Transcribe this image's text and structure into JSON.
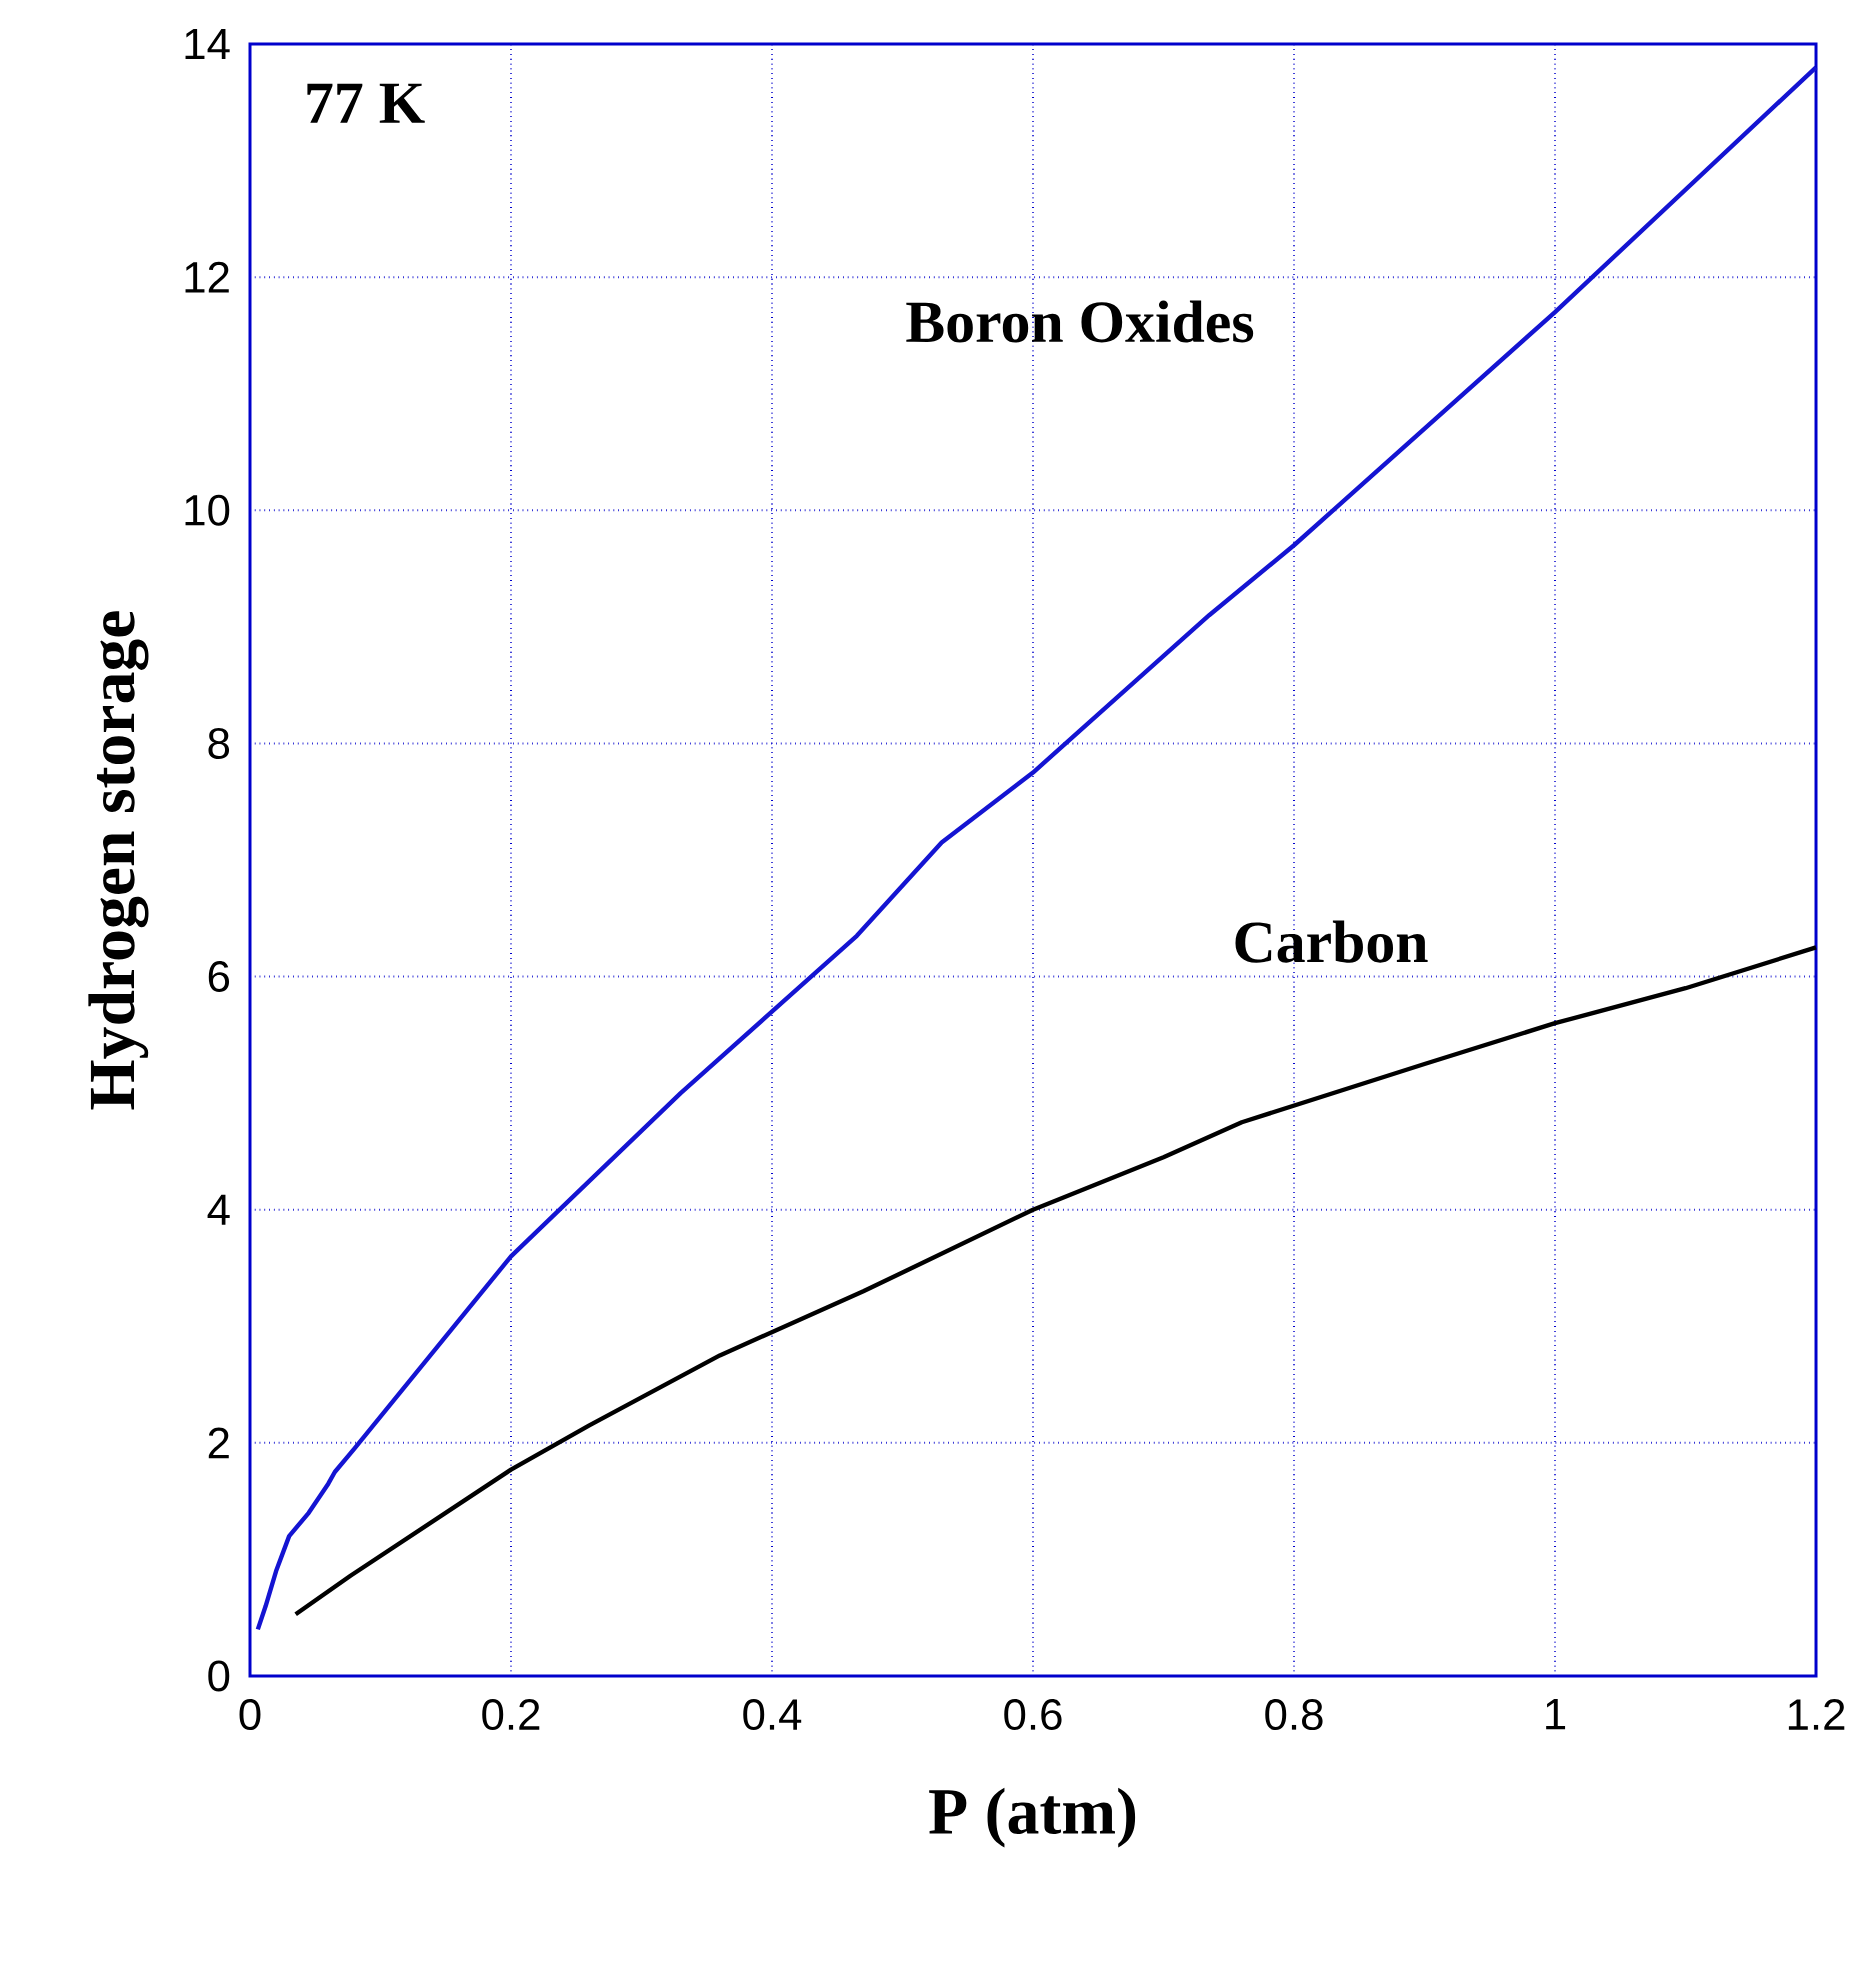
{
  "chart_data": {
    "type": "line",
    "xlabel": "P (atm)",
    "ylabel": "Hydrogen storage",
    "annotations": [
      "77 K"
    ],
    "xlim": [
      0,
      1.2
    ],
    "ylim": [
      0,
      14
    ],
    "xticks": [
      0,
      0.2,
      0.4,
      0.6,
      0.8,
      1,
      1.2
    ],
    "yticks": [
      0,
      2,
      4,
      6,
      8,
      10,
      12,
      14
    ],
    "grid": true,
    "marker": "none",
    "line_style": "solid",
    "series": [
      {
        "name": "Boron Oxides",
        "color": "#1414d2",
        "x": [
          0.006,
          0.012,
          0.02,
          0.03,
          0.045,
          0.06,
          0.065,
          0.08,
          0.2,
          0.265,
          0.33,
          0.465,
          0.53,
          0.6,
          0.735,
          0.8,
          1.0,
          1.2
        ],
        "values": [
          0.4,
          0.6,
          0.9,
          1.2,
          1.4,
          1.65,
          1.75,
          1.95,
          3.6,
          4.3,
          5.0,
          6.35,
          7.15,
          7.75,
          9.1,
          9.7,
          11.7,
          13.8
        ]
      },
      {
        "name": "Carbon",
        "color": "#000000",
        "x": [
          0.035,
          0.077,
          0.2,
          0.26,
          0.36,
          0.47,
          0.6,
          0.7,
          0.76,
          0.9,
          1.0,
          1.1,
          1.2
        ],
        "values": [
          0.53,
          0.86,
          1.77,
          2.15,
          2.75,
          3.3,
          4.0,
          4.45,
          4.75,
          5.25,
          5.6,
          5.9,
          6.25
        ]
      }
    ]
  }
}
